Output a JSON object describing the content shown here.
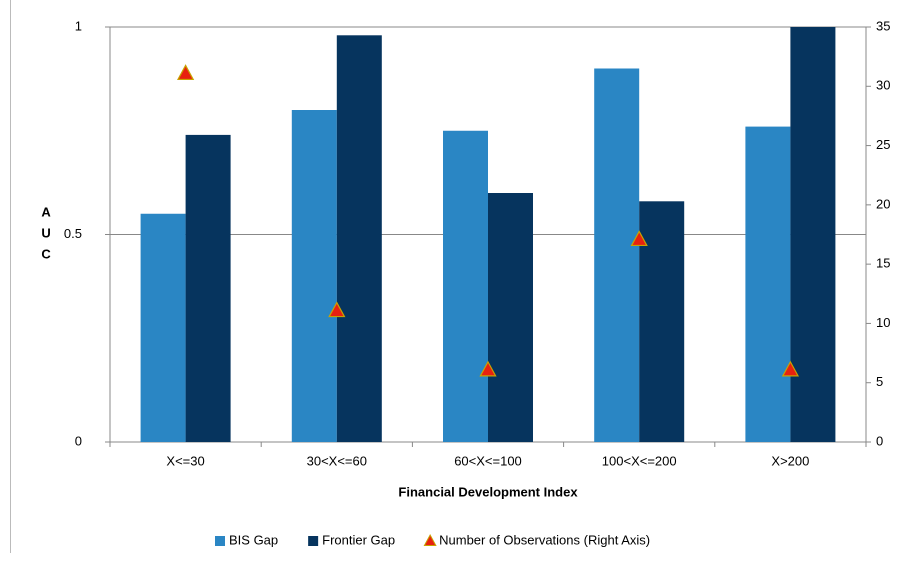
{
  "chart_data": {
    "type": "bar",
    "y_label": "AUC",
    "x_label": "Financial Development Index",
    "categories": [
      "X<=30",
      "30<X<=60",
      "60<X<=100",
      "100<X<=200",
      "X>200"
    ],
    "series": [
      {
        "name": "BIS Gap",
        "color": "#2a86c4",
        "values": [
          0.55,
          0.8,
          0.75,
          0.9,
          0.76
        ]
      },
      {
        "name": "Frontier Gap",
        "color": "#06345e",
        "values": [
          0.74,
          0.98,
          0.6,
          0.58,
          1.0
        ]
      },
      {
        "name": "Number of Observations (Right Axis)",
        "color": "#e8210f",
        "type": "scatter",
        "axis": "y2",
        "values": [
          31,
          11,
          6,
          17,
          6
        ]
      }
    ],
    "ylim": [
      0,
      1
    ],
    "yticks": [
      0,
      0.5,
      1
    ],
    "y2lim": [
      0,
      35
    ],
    "y2ticks": [
      0,
      5,
      10,
      15,
      20,
      25,
      30,
      35
    ],
    "grid": true,
    "legend": "bottom"
  }
}
